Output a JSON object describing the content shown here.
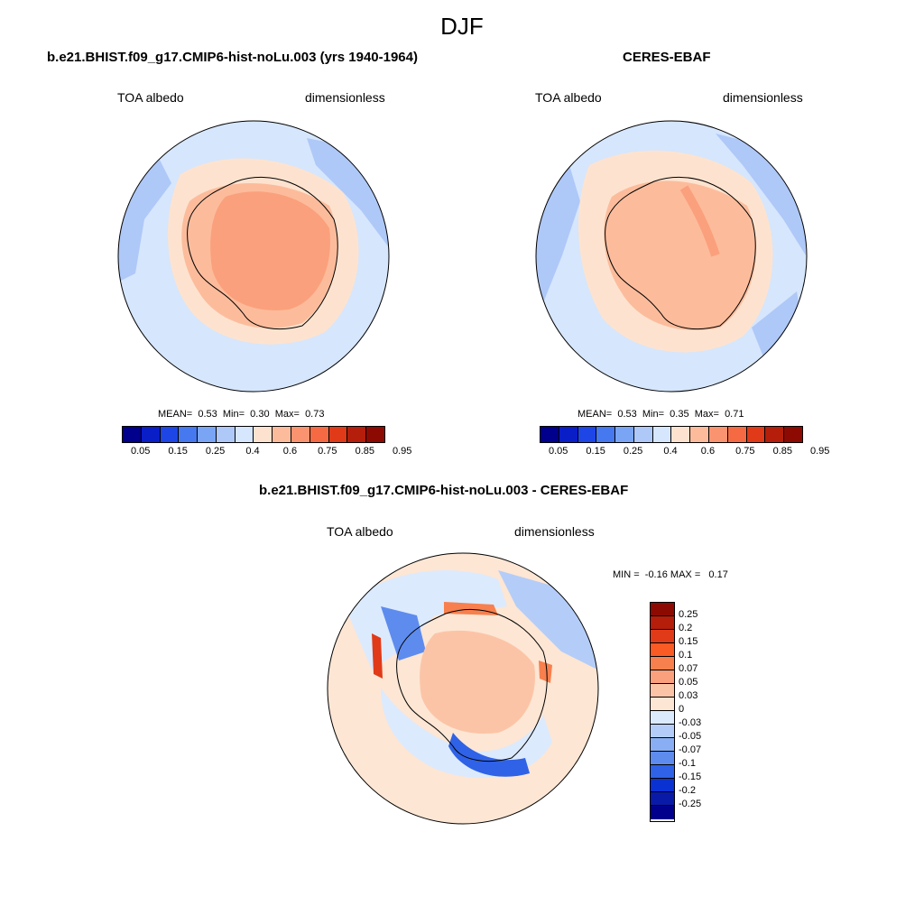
{
  "figure": {
    "title": "DJF"
  },
  "panels": [
    {
      "title": "b.e21.BHIST.f09_g17.CMIP6-hist-noLu.003 (yrs 1940-1964)",
      "left_label": "TOA albedo",
      "right_label": "dimensionless",
      "stats": {
        "mean_label": "MEAN=",
        "mean": "0.53",
        "min_label": "Min=",
        "min": "0.30",
        "max_label": "Max=",
        "max": "0.73"
      }
    },
    {
      "title": "CERES-EBAF",
      "left_label": "TOA albedo",
      "right_label": "dimensionless",
      "stats": {
        "mean_label": "MEAN=",
        "mean": "0.53",
        "min_label": "Min=",
        "min": "0.35",
        "max_label": "Max=",
        "max": "0.71"
      }
    },
    {
      "title": "b.e21.BHIST.f09_g17.CMIP6-hist-noLu.003 - CERES-EBAF",
      "left_label": "TOA albedo",
      "right_label": "dimensionless",
      "stats": {
        "min_label": "MIN =",
        "min": "-0.16",
        "max_label": "MAX =",
        "max": "0.17"
      }
    }
  ],
  "colorbar_abs": {
    "labels": [
      "0.05",
      "0.15",
      "0.25",
      "0.4",
      "0.6",
      "0.75",
      "0.85",
      "0.95"
    ],
    "colors": [
      "#00008c",
      "#0a1ec8",
      "#1e46e6",
      "#4678f0",
      "#7aa5f5",
      "#aec8f8",
      "#d6e6fc",
      "#fde3cf",
      "#fcbc9c",
      "#fa9470",
      "#f56a42",
      "#e03a18",
      "#b41e0a",
      "#8c0a02"
    ]
  },
  "colorbar_diff": {
    "labels": [
      "0.25",
      "0.2",
      "0.15",
      "0.1",
      "0.07",
      "0.05",
      "0.03",
      "0",
      "-0.03",
      "-0.05",
      "-0.07",
      "-0.1",
      "-0.15",
      "-0.2",
      "-0.25"
    ],
    "colors": [
      "#8c0a02",
      "#b41e0a",
      "#e03a18",
      "#fa5a24",
      "#f8804e",
      "#fba07c",
      "#fcc4a6",
      "#fde6d4",
      "#dceafd",
      "#b4cdf8",
      "#8aaef3",
      "#5e8cee",
      "#2f62e6",
      "#0a32d2",
      "#0a1aa8",
      "#00008c"
    ]
  },
  "colors": {
    "ocean_light": "#d6e6fc",
    "ocean_mid": "#aec8f8",
    "ice_pale": "#fde3cf",
    "ice_mid": "#fcbc9c",
    "ice_strong": "#fba07c",
    "diff_pos_light": "#fde6d4",
    "diff_pos_mid": "#fcc4a6",
    "diff_neg_light": "#dceafd",
    "diff_neg_strong": "#2f62e6",
    "diff_pos_strong": "#e03a18"
  }
}
